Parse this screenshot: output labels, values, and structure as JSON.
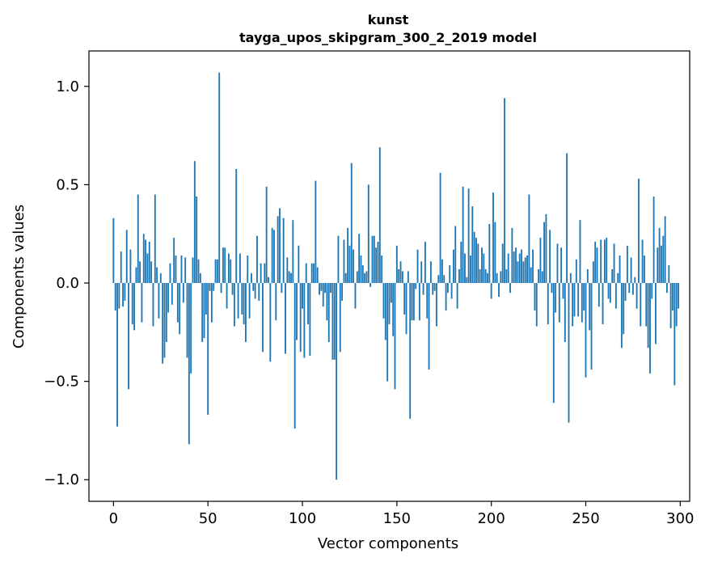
{
  "chart_data": {
    "type": "bar",
    "title": "kunst",
    "subtitle": "tayga_upos_skipgram_300_2_2019 model",
    "xlabel": "Vector components",
    "ylabel": "Components values",
    "xlim": [
      -13,
      305
    ],
    "ylim": [
      -1.11,
      1.18
    ],
    "xticks": [
      0,
      50,
      100,
      150,
      200,
      250,
      300
    ],
    "xtick_labels": [
      "0",
      "50",
      "100",
      "150",
      "200",
      "250",
      "300"
    ],
    "yticks": [
      -1.0,
      -0.5,
      0.0,
      0.5,
      1.0
    ],
    "ytick_labels": [
      "−1.0",
      "−0.5",
      "0.0",
      "0.5",
      "1.0"
    ],
    "grid": false,
    "bar_color": "#1f77b4",
    "values": [
      0.33,
      -0.14,
      -0.73,
      -0.13,
      0.16,
      -0.12,
      -0.09,
      0.27,
      -0.54,
      0.17,
      -0.21,
      -0.24,
      0.08,
      0.45,
      0.11,
      -0.2,
      0.25,
      0.22,
      0.15,
      0.21,
      0.11,
      -0.22,
      0.45,
      0.08,
      -0.18,
      0.05,
      -0.41,
      -0.38,
      -0.3,
      -0.15,
      0.1,
      -0.11,
      0.23,
      0.14,
      -0.2,
      -0.26,
      0.14,
      -0.1,
      0.13,
      -0.38,
      -0.82,
      -0.46,
      0.13,
      0.62,
      0.44,
      0.12,
      0.05,
      -0.3,
      -0.28,
      -0.16,
      -0.67,
      -0.04,
      -0.2,
      -0.04,
      0.12,
      0.12,
      1.07,
      -0.05,
      0.18,
      0.18,
      -0.13,
      0.15,
      0.12,
      -0.06,
      -0.22,
      0.58,
      -0.18,
      0.15,
      -0.16,
      -0.21,
      -0.3,
      0.14,
      -0.18,
      0.05,
      -0.04,
      -0.08,
      0.24,
      -0.09,
      0.1,
      -0.35,
      0.1,
      0.49,
      0.03,
      -0.4,
      0.28,
      0.27,
      -0.19,
      0.34,
      0.38,
      -0.05,
      0.33,
      -0.36,
      0.13,
      0.06,
      0.05,
      0.32,
      -0.74,
      -0.29,
      0.19,
      -0.35,
      -0.13,
      -0.38,
      0.1,
      -0.21,
      -0.37,
      0.1,
      0.1,
      0.52,
      0.08,
      -0.06,
      -0.04,
      -0.12,
      -0.05,
      -0.19,
      -0.3,
      -0.05,
      -0.39,
      -0.39,
      -1.0,
      0.24,
      -0.35,
      -0.09,
      0.22,
      0.05,
      0.28,
      0.19,
      0.61,
      0.17,
      -0.13,
      0.06,
      0.25,
      0.14,
      0.09,
      0.05,
      0.06,
      0.5,
      -0.02,
      0.24,
      0.24,
      0.18,
      0.21,
      0.69,
      0.14,
      -0.18,
      -0.29,
      -0.5,
      -0.21,
      -0.1,
      -0.27,
      -0.54,
      0.19,
      0.07,
      0.11,
      0.06,
      -0.16,
      -0.26,
      0.06,
      -0.69,
      -0.19,
      -0.19,
      -0.03,
      0.17,
      -0.19,
      0.11,
      -0.06,
      0.21,
      -0.18,
      -0.44,
      0.11,
      -0.06,
      -0.04,
      -0.22,
      0.04,
      0.56,
      0.12,
      0.04,
      -0.14,
      -0.05,
      0.09,
      -0.08,
      0.17,
      0.29,
      -0.13,
      0.07,
      0.21,
      0.49,
      0.15,
      0.03,
      0.48,
      0.14,
      0.39,
      0.26,
      0.23,
      0.2,
      0.07,
      0.18,
      0.15,
      0.07,
      0.05,
      0.3,
      -0.08,
      0.46,
      0.31,
      0.05,
      -0.07,
      0.06,
      0.2,
      0.94,
      0.07,
      0.15,
      -0.05,
      0.28,
      0.16,
      0.18,
      0.11,
      0.15,
      0.17,
      0.11,
      0.13,
      0.14,
      0.45,
      0.08,
      0.17,
      -0.14,
      -0.22,
      0.07,
      0.23,
      0.06,
      0.31,
      0.35,
      -0.21,
      0.27,
      -0.05,
      -0.61,
      -0.15,
      0.2,
      -0.2,
      0.18,
      -0.08,
      -0.3,
      0.66,
      -0.71,
      0.05,
      -0.22,
      -0.17,
      0.12,
      -0.17,
      0.32,
      -0.2,
      -0.14,
      -0.48,
      0.07,
      -0.24,
      -0.44,
      0.11,
      0.21,
      0.18,
      -0.12,
      0.22,
      -0.21,
      0.22,
      0.23,
      -0.08,
      -0.1,
      0.07,
      0.2,
      -0.13,
      0.05,
      0.14,
      -0.33,
      -0.26,
      -0.09,
      0.19,
      -0.05,
      0.13,
      -0.06,
      0.03,
      -0.13,
      0.53,
      -0.22,
      0.22,
      0.14,
      -0.22,
      -0.33,
      -0.46,
      -0.08,
      0.44,
      -0.31,
      0.18,
      0.28,
      0.19,
      0.24,
      0.34,
      -0.05,
      0.09,
      -0.23,
      -0.14,
      -0.52,
      -0.22,
      -0.13
    ]
  }
}
